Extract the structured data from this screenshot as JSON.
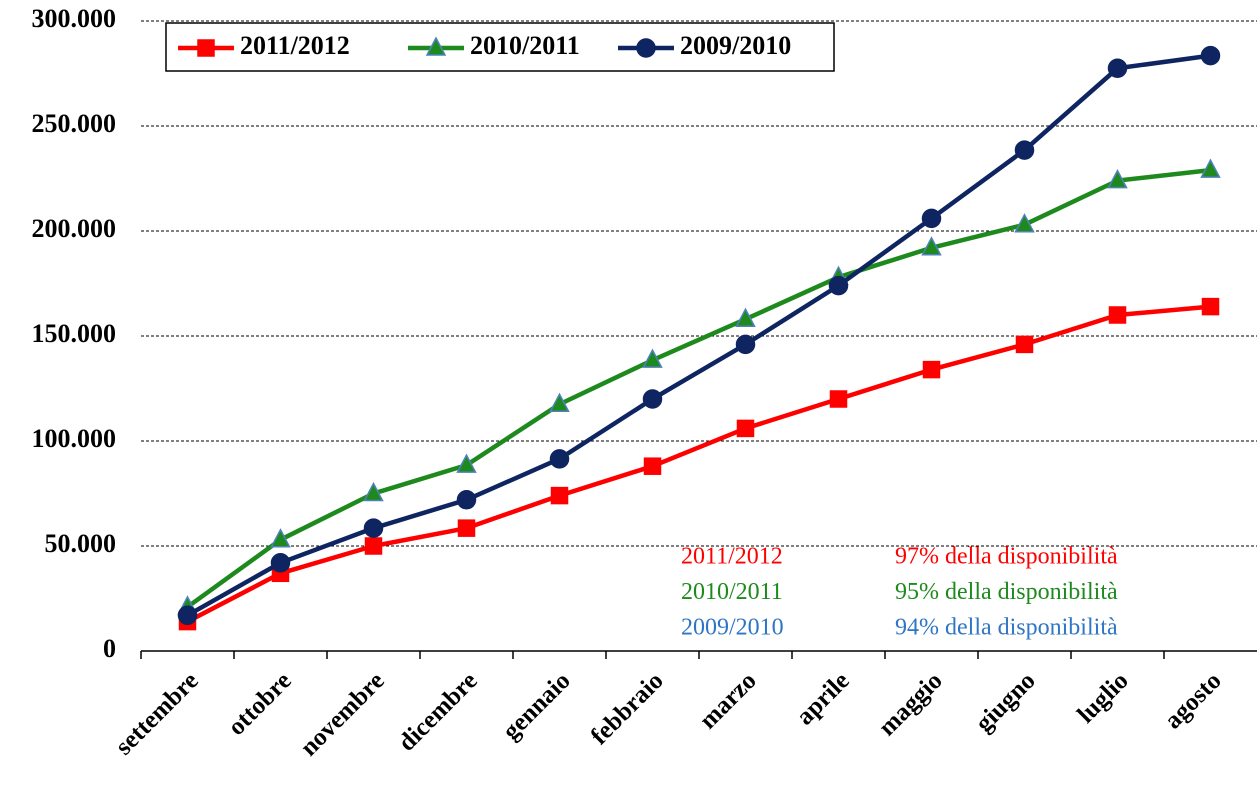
{
  "chart_data": {
    "type": "line",
    "categories": [
      "settembre",
      "ottobre",
      "novembre",
      "dicembre",
      "gennaio",
      "febbraio",
      "marzo",
      "aprile",
      "maggio",
      "giugno",
      "luglio",
      "agosto"
    ],
    "series": [
      {
        "name": "2011/2012",
        "color": "#ff0000",
        "marker": "square",
        "marker_edge_color": "#ff0000",
        "values": [
          14000,
          37000,
          50000,
          58500,
          74000,
          88000,
          106000,
          120000,
          134000,
          146000,
          160000,
          164000
        ]
      },
      {
        "name": "2010/2011",
        "color": "#1e8a1e",
        "marker": "triangle",
        "marker_edge_color": "#4f81bd",
        "values": [
          21000,
          53000,
          75000,
          88500,
          117500,
          138500,
          158000,
          178000,
          192000,
          203000,
          224000,
          229000
        ]
      },
      {
        "name": "2009/2010",
        "color": "#0f2561",
        "marker": "circle",
        "marker_edge_color": "#0f2561",
        "values": [
          17000,
          42000,
          58500,
          72000,
          91500,
          120000,
          146000,
          174000,
          206000,
          238500,
          277500,
          283500
        ]
      }
    ],
    "ylim": [
      0,
      300000
    ],
    "yticks": [
      0,
      {
        "value": 50000,
        "label": "50.000"
      },
      {
        "value": 100000,
        "label": "100.000"
      },
      {
        "value": 150000,
        "label": "150.000"
      },
      {
        "value": 200000,
        "label": "200.000"
      },
      {
        "value": 250000,
        "label": "250.000"
      },
      {
        "value": 300000,
        "label": "300.000"
      }
    ],
    "grid": true,
    "legend": "top-left",
    "annotations": [
      {
        "label": "2011/2012",
        "text": "97% della disponibilità",
        "color": "#ff0000"
      },
      {
        "label": "2010/2011",
        "text": "95% della disponibilità",
        "color": "#1e8a1e"
      },
      {
        "label": "2009/2010",
        "text": "94% della disponibilità",
        "color": "#2e75c4"
      }
    ]
  }
}
